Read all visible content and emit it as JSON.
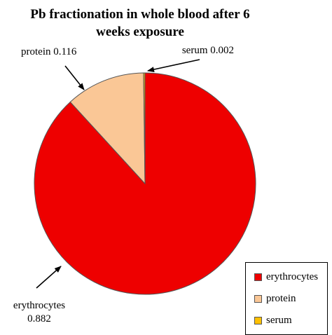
{
  "chart_data": {
    "type": "pie",
    "title": "Pb fractionation  in whole blood after 6 weeks exposure",
    "categories": [
      "erythrocytes",
      "protein",
      "serum"
    ],
    "values": [
      0.882,
      0.116,
      0.002
    ],
    "colors": [
      "#ee0000",
      "#fac796",
      "#ffc000"
    ],
    "data_labels": [
      "erythrocytes 0.882",
      "protein 0.116",
      "serum 0.002"
    ],
    "label_parts": {
      "erythrocytes": [
        "erythrocytes",
        "0.882"
      ],
      "protein": [
        "protein 0.116"
      ],
      "serum": [
        "serum 0.002"
      ]
    },
    "legend": {
      "position": "bottom-right",
      "entries": [
        "erythrocytes",
        "protein",
        "serum"
      ]
    }
  }
}
